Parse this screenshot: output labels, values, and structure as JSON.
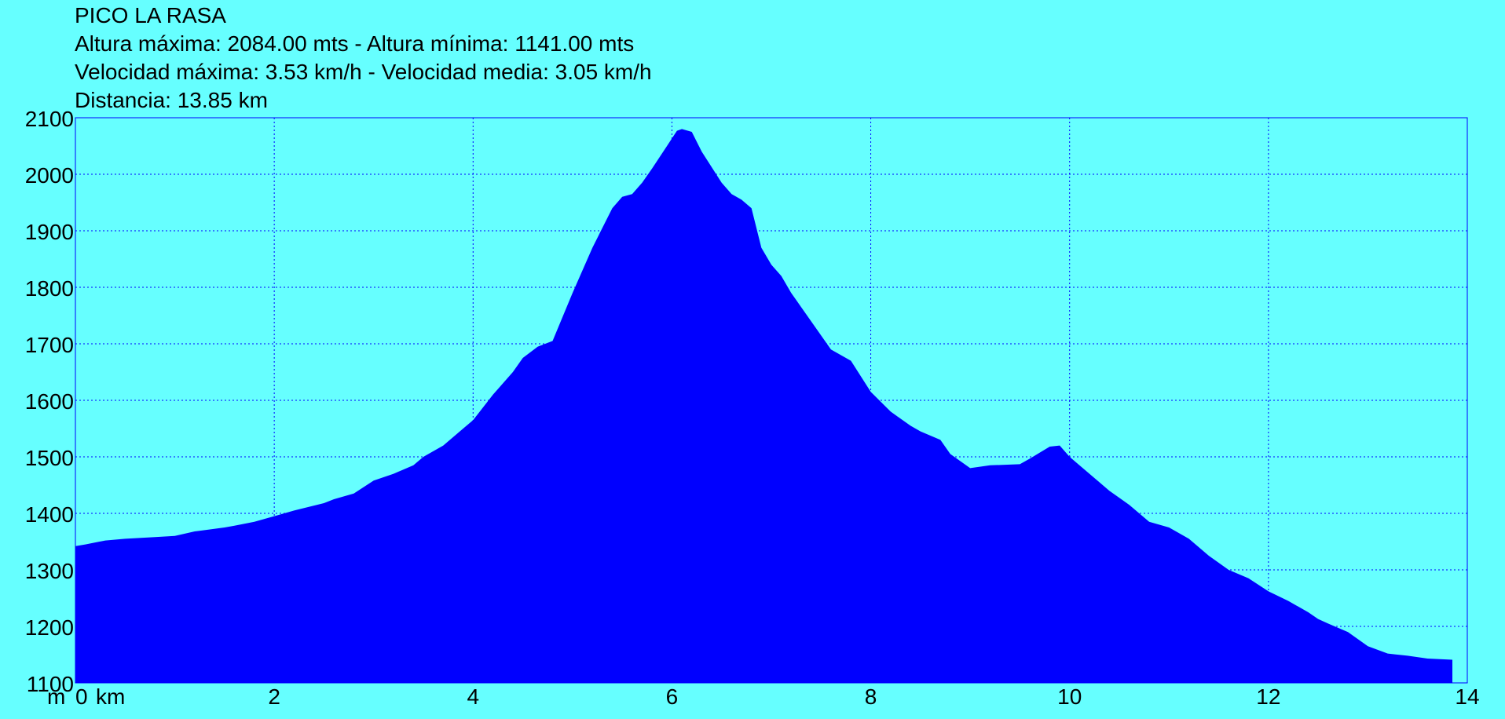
{
  "header": {
    "title": "PICO LA RASA",
    "altitude_line": "Altura máxima: 2084.00 mts - Altura mínima: 1141.00 mts",
    "speed_line": "Velocidad máxima: 3.53 km/h - Velocidad media: 3.05 km/h",
    "distance_line": "Distancia: 13.85 km"
  },
  "chart_data": {
    "type": "area",
    "title": "PICO LA RASA",
    "xlabel": "",
    "ylabel": "",
    "x_unit_label": "km",
    "y_unit_label": "m",
    "xlim": [
      0,
      14
    ],
    "ylim": [
      1100,
      2100
    ],
    "xticks": [
      0,
      2,
      4,
      6,
      8,
      10,
      12,
      14
    ],
    "xtick_labels": [
      "0",
      "2",
      "4",
      "6",
      "8",
      "10",
      "12",
      "14"
    ],
    "yticks": [
      1100,
      1200,
      1300,
      1400,
      1500,
      1600,
      1700,
      1800,
      1900,
      2000,
      2100
    ],
    "ytick_labels": [
      "1100",
      "1200",
      "1300",
      "1400",
      "1500",
      "1600",
      "1700",
      "1800",
      "1900",
      "2000",
      "2100"
    ],
    "grid": true,
    "colors": {
      "fill": "#0000ff",
      "background": "#66ffff",
      "grid": "#0000ff",
      "text": "#000000"
    },
    "series": [
      {
        "x": [
          0,
          0.1,
          0.3,
          0.5,
          0.8,
          1.0,
          1.2,
          1.5,
          1.6,
          1.8,
          2.0,
          2.2,
          2.5,
          2.6,
          2.8,
          3.0,
          3.2,
          3.4,
          3.5,
          3.7,
          3.9,
          4.0,
          4.2,
          4.4,
          4.5,
          4.65,
          4.8,
          5.0,
          5.2,
          5.4,
          5.5,
          5.6,
          5.7,
          5.8,
          5.95,
          6.05,
          6.1,
          6.2,
          6.3,
          6.5,
          6.6,
          6.7,
          6.8,
          6.9,
          7.0,
          7.1,
          7.2,
          7.4,
          7.6,
          7.8,
          8.0,
          8.2,
          8.4,
          8.5,
          8.7,
          8.8,
          9.0,
          9.2,
          9.5,
          9.6,
          9.8,
          9.9,
          10.0,
          10.2,
          10.4,
          10.6,
          10.8,
          11.0,
          11.2,
          11.4,
          11.6,
          11.8,
          12.0,
          12.2,
          12.3,
          12.4,
          12.5,
          12.6,
          12.8,
          13.0,
          13.2,
          13.4,
          13.6,
          13.85
        ],
        "y": [
          1342,
          1345,
          1352,
          1355,
          1358,
          1360,
          1368,
          1375,
          1378,
          1385,
          1395,
          1405,
          1418,
          1425,
          1435,
          1458,
          1470,
          1485,
          1500,
          1520,
          1550,
          1565,
          1610,
          1650,
          1675,
          1695,
          1705,
          1790,
          1870,
          1940,
          1960,
          1965,
          1985,
          2010,
          2050,
          2077,
          2080,
          2075,
          2040,
          1985,
          1965,
          1955,
          1940,
          1870,
          1840,
          1820,
          1790,
          1740,
          1690,
          1670,
          1615,
          1580,
          1555,
          1545,
          1530,
          1505,
          1480,
          1485,
          1487,
          1497,
          1518,
          1520,
          1500,
          1470,
          1440,
          1415,
          1385,
          1375,
          1355,
          1325,
          1300,
          1285,
          1262,
          1245,
          1235,
          1225,
          1213,
          1205,
          1190,
          1165,
          1152,
          1148,
          1143,
          1141
        ]
      }
    ]
  }
}
